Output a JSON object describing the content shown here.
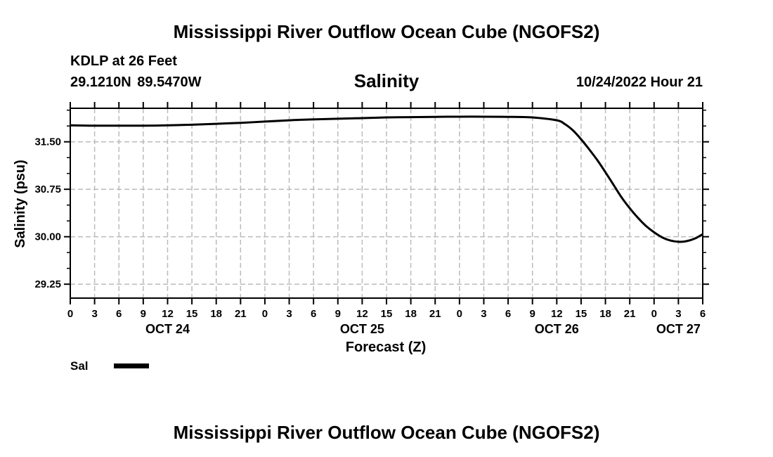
{
  "page_title": "Mississippi River Outflow Ocean Cube (NGOFS2)",
  "footer_title": "Mississippi River Outflow Ocean Cube (NGOFS2)",
  "station": {
    "name_depth": "KDLP at 26 Feet",
    "coords": "29.1210N  89.5470W",
    "timestamp": "10/24/2022 Hour 21"
  },
  "chart_data": {
    "type": "line",
    "title": "Salinity",
    "xlabel": "Forecast (Z)",
    "ylabel": "Salinity (psu)",
    "ylim": [
      29.03,
      32.03
    ],
    "xlim": [
      0,
      78
    ],
    "grid": true,
    "yticks": [
      29.25,
      30.0,
      30.75,
      31.5
    ],
    "ytick_labels": [
      "29.25",
      "30.00",
      "30.75",
      "31.50"
    ],
    "xticks": [
      0,
      3,
      6,
      9,
      12,
      15,
      18,
      21,
      24,
      27,
      30,
      33,
      36,
      39,
      42,
      45,
      48,
      51,
      54,
      57,
      60,
      63,
      66,
      69,
      72,
      75,
      78
    ],
    "xtick_labels": [
      "0",
      "3",
      "6",
      "9",
      "12",
      "15",
      "18",
      "21",
      "0",
      "3",
      "6",
      "9",
      "12",
      "15",
      "18",
      "21",
      "0",
      "3",
      "6",
      "9",
      "12",
      "15",
      "18",
      "21",
      "0",
      "3",
      "6"
    ],
    "date_labels": [
      {
        "label": "OCT 24",
        "hour": 12
      },
      {
        "label": "OCT 25",
        "hour": 36
      },
      {
        "label": "OCT 26",
        "hour": 60
      },
      {
        "label": "OCT 27",
        "hour": 75
      }
    ],
    "series": [
      {
        "name": "Sal",
        "x": [
          0,
          3,
          6,
          9,
          12,
          15,
          18,
          21,
          24,
          27,
          30,
          33,
          36,
          39,
          42,
          45,
          48,
          51,
          54,
          57,
          60,
          61,
          62,
          63,
          64,
          65,
          66,
          67,
          68,
          69,
          70,
          71,
          72,
          73,
          74,
          75,
          76,
          77,
          78
        ],
        "values": [
          31.76,
          31.755,
          31.755,
          31.755,
          31.76,
          31.77,
          31.785,
          31.8,
          31.82,
          31.84,
          31.855,
          31.865,
          31.875,
          31.885,
          31.89,
          31.895,
          31.897,
          31.897,
          31.895,
          31.885,
          31.84,
          31.78,
          31.68,
          31.54,
          31.38,
          31.21,
          31.02,
          30.82,
          30.62,
          30.45,
          30.3,
          30.17,
          30.07,
          29.99,
          29.94,
          29.92,
          29.93,
          29.97,
          30.04
        ]
      }
    ],
    "legend": {
      "label": "Sal",
      "placement": "bottom-left"
    }
  }
}
